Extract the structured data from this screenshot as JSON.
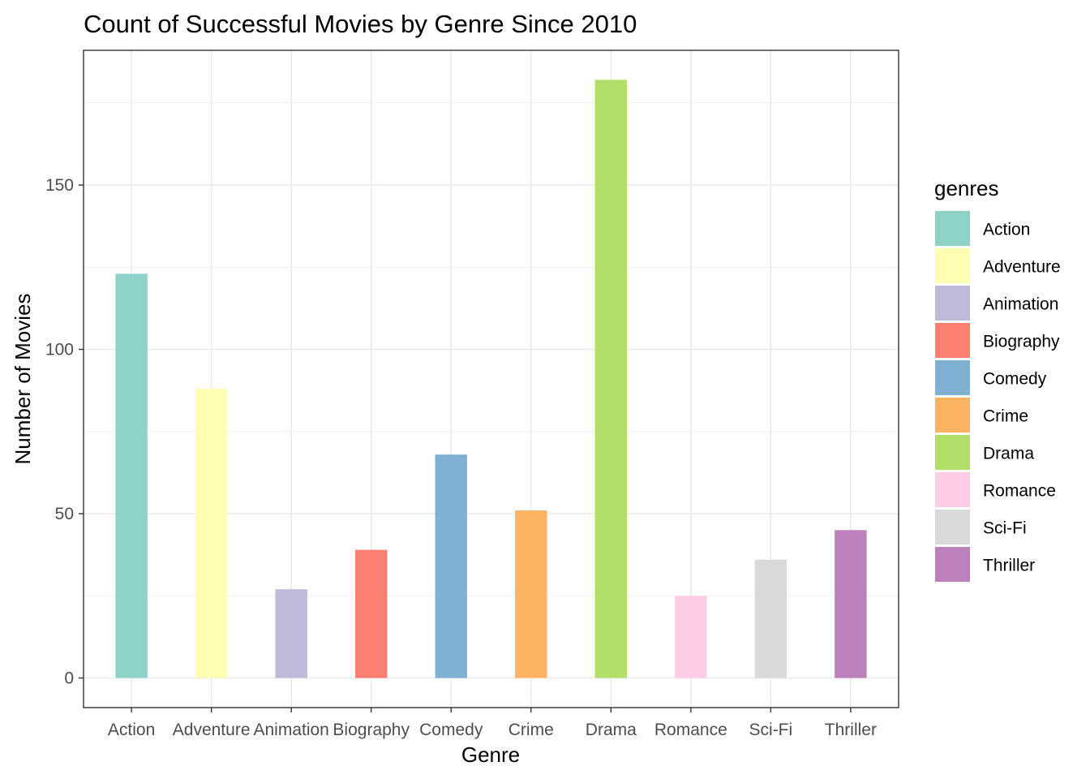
{
  "chart_data": {
    "type": "bar",
    "title": "Count of Successful Movies by Genre Since 2010",
    "xlabel": "Genre",
    "ylabel": "Number of Movies",
    "categories": [
      "Action",
      "Adventure",
      "Animation",
      "Biography",
      "Comedy",
      "Crime",
      "Drama",
      "Romance",
      "Sci-Fi",
      "Thriller"
    ],
    "values": [
      123,
      88,
      27,
      39,
      68,
      51,
      182,
      25,
      36,
      45
    ],
    "colors": [
      "#8dd3c7",
      "#ffffb3",
      "#bebada",
      "#fb8072",
      "#80b1d3",
      "#fdb462",
      "#b3de69",
      "#fccde5",
      "#d9d9d9",
      "#bc80bd"
    ],
    "ylim": [
      -9,
      191
    ],
    "yticks": [
      0,
      50,
      100,
      150
    ],
    "ytick_labels": [
      "0",
      "50",
      "100",
      "150"
    ],
    "grid": true,
    "legend": {
      "title": "genres",
      "position": "right",
      "entries": [
        "Action",
        "Adventure",
        "Animation",
        "Biography",
        "Comedy",
        "Crime",
        "Drama",
        "Romance",
        "Sci-Fi",
        "Thriller"
      ]
    }
  }
}
